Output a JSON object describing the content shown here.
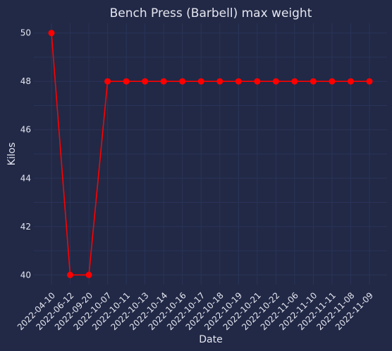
{
  "chart_data": {
    "type": "line",
    "title": "Bench Press (Barbell) max weight",
    "xlabel": "Date",
    "ylabel": "Kilos",
    "categories": [
      "2022-04-10",
      "2022-06-12",
      "2022-09-20",
      "2022-10-07",
      "2022-10-11",
      "2022-10-13",
      "2022-10-14",
      "2022-10-16",
      "2022-10-17",
      "2022-10-18",
      "2022-10-19",
      "2022-10-21",
      "2022-10-22",
      "2022-11-06",
      "2022-11-10",
      "2022-11-11",
      "2022-11-08",
      "2022-11-09"
    ],
    "series": [
      {
        "values": [
          50,
          40,
          40,
          48,
          48,
          48,
          48,
          48,
          48,
          48,
          48,
          48,
          48,
          48,
          48,
          48,
          48,
          48
        ]
      }
    ],
    "yticks": [
      "40",
      "42",
      "44",
      "46",
      "48",
      "50"
    ],
    "ylim": [
      39.6,
      50.4
    ],
    "grid": true,
    "colors": {
      "background": "#212946",
      "grid": "#2A3459",
      "line": "#FF0000",
      "text": "#E6E6F0"
    }
  }
}
